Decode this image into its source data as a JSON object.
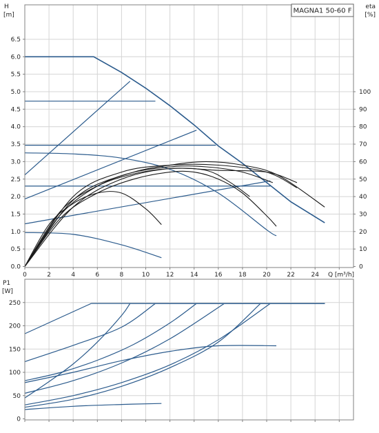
{
  "chart_data": [
    {
      "type": "line",
      "title": "MAGNA1 50-60 F",
      "xlabel": "Q [m³/h]",
      "ylabel": "H\n[m]",
      "ylabel_right": "eta\n[%]",
      "xlim": [
        0,
        26
      ],
      "ylim": [
        0,
        7
      ],
      "ylim_right": [
        0,
        140
      ],
      "xticks": [
        "0",
        "2",
        "4",
        "6",
        "8",
        "10",
        "12",
        "14",
        "16",
        "18",
        "20",
        "22",
        "24"
      ],
      "yticks": [
        "0.0",
        "0.5",
        "1.0",
        "1.5",
        "2.0",
        "2.5",
        "3.0",
        "3.5",
        "4.0",
        "4.5",
        "5.0",
        "5.5",
        "6.0",
        "6.5"
      ],
      "yticks_right": [
        "0",
        "10",
        "20",
        "30",
        "40",
        "50",
        "60",
        "70",
        "80",
        "90",
        "100"
      ],
      "grid": true,
      "colors": {
        "head": "#2a5a8c",
        "efficiency": "#1a1a1a"
      },
      "head_series": [
        {
          "x": [
            0,
            5.7,
            8,
            10,
            12,
            14,
            16,
            18,
            20,
            22,
            24.8
          ],
          "y": [
            6.0,
            6.0,
            5.55,
            5.1,
            4.6,
            4.05,
            3.45,
            2.95,
            2.4,
            1.85,
            1.25
          ]
        },
        {
          "x": [
            0,
            10.8
          ],
          "y": [
            4.73,
            4.73
          ]
        },
        {
          "x": [
            0,
            15.8
          ],
          "y": [
            3.47,
            3.47
          ]
        },
        {
          "x": [
            0,
            20.3
          ],
          "y": [
            2.3,
            2.3
          ]
        },
        {
          "x": [
            0,
            4,
            8,
            12,
            16,
            20,
            20.8
          ],
          "y": [
            3.25,
            3.22,
            3.1,
            2.78,
            2.1,
            1.05,
            0.88
          ]
        },
        {
          "x": [
            0,
            4,
            8,
            11.3
          ],
          "y": [
            0.97,
            0.92,
            0.62,
            0.25
          ]
        },
        {
          "x": [
            0,
            8.7
          ],
          "y": [
            2.62,
            5.3
          ]
        },
        {
          "x": [
            0,
            14.2
          ],
          "y": [
            1.93,
            3.9
          ]
        },
        {
          "x": [
            0,
            20.3
          ],
          "y": [
            1.22,
            2.45
          ]
        }
      ],
      "efficiency_series": [
        {
          "x": [
            0,
            2,
            4,
            6,
            8,
            10,
            11.3
          ],
          "y": [
            0,
            24,
            36,
            42,
            42,
            33,
            24
          ]
        },
        {
          "x": [
            0,
            3,
            6,
            9,
            12,
            14,
            16,
            18,
            20,
            20.8
          ],
          "y": [
            0,
            28,
            42,
            50,
            54,
            54,
            50,
            42,
            29,
            23
          ]
        },
        {
          "x": [
            0,
            3,
            6,
            9,
            12,
            15,
            17,
            18.6
          ],
          "y": [
            0,
            32,
            46,
            53,
            56,
            55,
            48,
            40
          ]
        },
        {
          "x": [
            0,
            4,
            8,
            12,
            15,
            18,
            20.5
          ],
          "y": [
            0,
            38,
            52,
            57,
            57,
            54,
            48
          ]
        },
        {
          "x": [
            0,
            4,
            8,
            12,
            16,
            20,
            22.5
          ],
          "y": [
            0,
            40,
            54,
            58,
            58,
            54,
            45
          ]
        },
        {
          "x": [
            0,
            4,
            8,
            12,
            16,
            20,
            22.5
          ],
          "y": [
            0,
            34,
            50,
            56,
            55,
            54,
            48
          ]
        },
        {
          "x": [
            0,
            3,
            6,
            9,
            12,
            15,
            18,
            21,
            24.8
          ],
          "y": [
            0,
            30,
            46,
            54,
            58,
            60,
            58,
            52,
            34
          ]
        }
      ]
    },
    {
      "type": "line",
      "xlabel": "",
      "ylabel": "P1\n[W]",
      "xlim": [
        0,
        26
      ],
      "ylim": [
        0,
        270
      ],
      "yticks": [
        "0",
        "50",
        "100",
        "150",
        "200",
        "250"
      ],
      "grid": true,
      "colors": {
        "power": "#2a5a8c"
      },
      "power_series": [
        {
          "x": [
            0,
            5.5,
            24.8
          ],
          "y": [
            183,
            248,
            248
          ]
        },
        {
          "x": [
            0,
            4,
            8,
            10.8,
            24.8
          ],
          "y": [
            123,
            158,
            197,
            248,
            248
          ]
        },
        {
          "x": [
            0,
            3,
            6,
            9,
            12,
            14.2,
            24.8
          ],
          "y": [
            82,
            100,
            126,
            160,
            206,
            248,
            248
          ]
        },
        {
          "x": [
            0,
            4,
            8,
            12,
            16.5,
            24.8
          ],
          "y": [
            55,
            82,
            120,
            172,
            248,
            248
          ]
        },
        {
          "x": [
            0,
            2,
            4,
            6,
            8,
            8.7,
            24.8
          ],
          "y": [
            45,
            80,
            118,
            165,
            222,
            248,
            248
          ]
        },
        {
          "x": [
            0,
            4,
            8,
            12,
            16,
            20.3,
            24.8
          ],
          "y": [
            30,
            50,
            78,
            116,
            170,
            248,
            248
          ]
        },
        {
          "x": [
            0,
            4,
            8,
            12,
            16,
            20.8
          ],
          "y": [
            78,
            100,
            125,
            145,
            157,
            157
          ]
        },
        {
          "x": [
            0,
            4,
            8,
            11.3
          ],
          "y": [
            20,
            27,
            31,
            33
          ]
        },
        {
          "x": [
            0,
            4,
            8,
            12,
            16,
            19.5
          ],
          "y": [
            25,
            42,
            70,
            110,
            165,
            248
          ]
        }
      ]
    }
  ]
}
